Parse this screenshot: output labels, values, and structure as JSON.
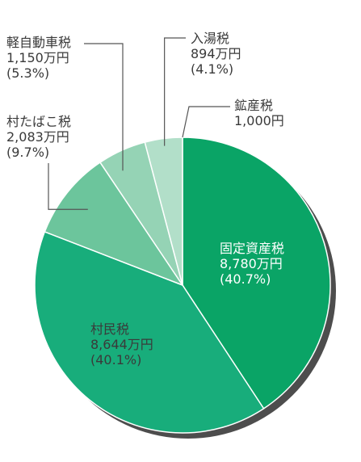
{
  "chart_data": {
    "type": "pie",
    "slices": [
      {
        "label": "固定資産税",
        "amount": "8,780万円",
        "percent": "(40.7%)",
        "value": 40.7,
        "color": "#0aa466"
      },
      {
        "label": "村民税",
        "amount": "8,644万円",
        "percent": "(40.1%)",
        "value": 40.1,
        "color": "#18ad7b"
      },
      {
        "label": "村たばこ税",
        "amount": "2,083万円",
        "percent": "(9.7%)",
        "value": 9.7,
        "color": "#6cc59c"
      },
      {
        "label": "軽自動車税",
        "amount": "1,150万円",
        "percent": "(5.3%)",
        "value": 5.3,
        "color": "#95d3b5"
      },
      {
        "label": "入湯税",
        "amount": "894万円",
        "percent": "(4.1%)",
        "value": 4.1,
        "color": "#b2dfc9"
      },
      {
        "label": "鉱産税",
        "amount": "1,000円",
        "percent": "",
        "value": 0.0,
        "color": "#0aa466"
      }
    ],
    "start": "top",
    "direction": "clockwise",
    "shadow_color": "#4d4d4d"
  }
}
